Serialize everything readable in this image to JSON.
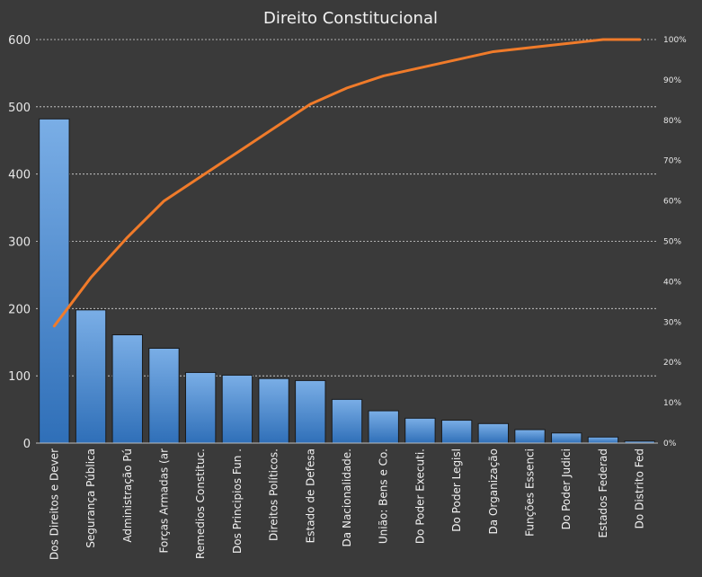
{
  "chart_data": {
    "type": "bar",
    "title": "Direito Constitucional",
    "categories": [
      "Dos Direitos e Dever",
      "Segurança Pública",
      "Administração Pú",
      "Forças Armadas (ar",
      "Remedios Constituc.",
      "Dos Principios Fun .",
      "Direitos Políticos.",
      "Estado de Defesa",
      "Da Nacionalidade.",
      "União: Bens e Co.",
      "Do Poder Executi.",
      "Do Poder Legisl",
      "Da Organização",
      "Funções Essenci",
      "Do Poder Judici",
      "Estados Federad",
      "Do Distrito Fed"
    ],
    "series": [
      {
        "type": "bar",
        "values": [
          482,
          198,
          161,
          141,
          105,
          101,
          96,
          93,
          65,
          48,
          37,
          34,
          29,
          20,
          15,
          9,
          3
        ]
      },
      {
        "type": "line",
        "axis": "right",
        "values": [
          0.29,
          0.41,
          0.51,
          0.6,
          0.66,
          0.72,
          0.78,
          0.84,
          0.88,
          0.91,
          0.93,
          0.95,
          0.97,
          0.98,
          0.99,
          1.0,
          1.0
        ]
      }
    ],
    "y_left": {
      "min": 0,
      "max": 600,
      "ticks": [
        "0",
        "100",
        "200",
        "300",
        "400",
        "500",
        "600"
      ]
    },
    "y_right": {
      "min": 0,
      "max": 1,
      "ticks": [
        "0%",
        "10%",
        "20%",
        "30%",
        "40%",
        "50%",
        "60%",
        "70%",
        "80%",
        "90%",
        "100%"
      ]
    },
    "grid": true,
    "legend": "none",
    "colors": {
      "background": "#3a3a3a",
      "bar_top": "#7aaee6",
      "bar_bottom": "#2f6fb8",
      "bar_edge": "#1a1a1a",
      "line": "#f07b2a",
      "grid": "#d8d8d8",
      "text": "#f0f0f0"
    }
  }
}
